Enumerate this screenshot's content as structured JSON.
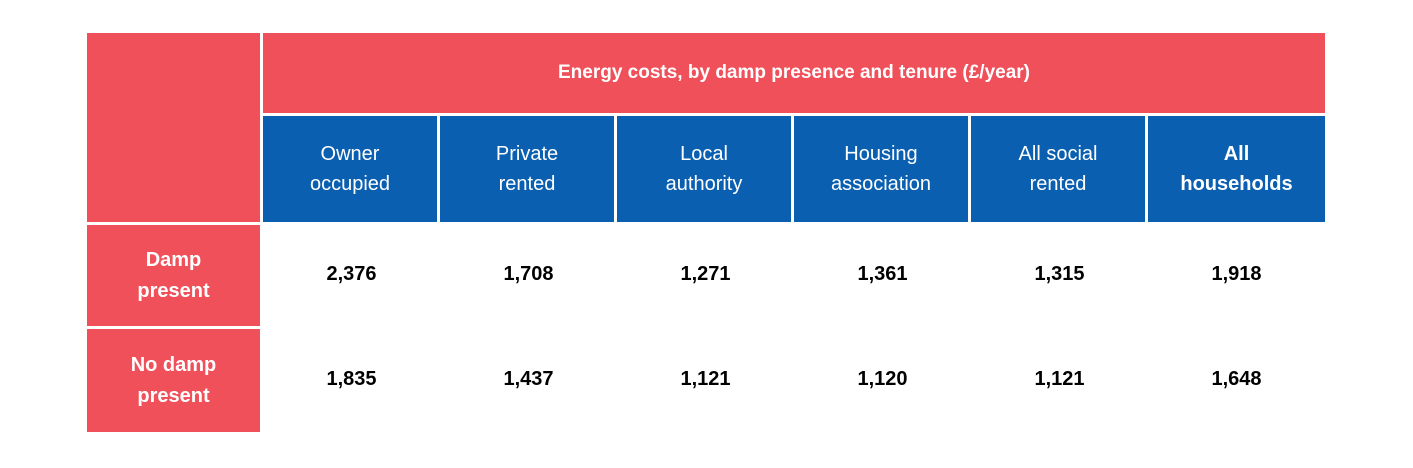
{
  "table": {
    "title": "Energy costs, by damp presence and tenure (£/year)",
    "columns": [
      {
        "line1": "Owner",
        "line2": "occupied"
      },
      {
        "line1": "Private",
        "line2": "rented"
      },
      {
        "line1": "Local",
        "line2": "authority"
      },
      {
        "line1": "Housing",
        "line2": "association"
      },
      {
        "line1": "All social",
        "line2": "rented"
      },
      {
        "line1": "All",
        "line2": "households"
      }
    ],
    "rows": [
      {
        "line1": "Damp",
        "line2": "present",
        "values": [
          "2,376",
          "1,708",
          "1,271",
          "1,361",
          "1,315",
          "1,918"
        ]
      },
      {
        "line1": "No damp",
        "line2": "present",
        "values": [
          "1,835",
          "1,437",
          "1,121",
          "1,120",
          "1,121",
          "1,648"
        ]
      }
    ]
  },
  "colors": {
    "header_red": "#f0505a",
    "header_blue": "#0a5fb0"
  }
}
